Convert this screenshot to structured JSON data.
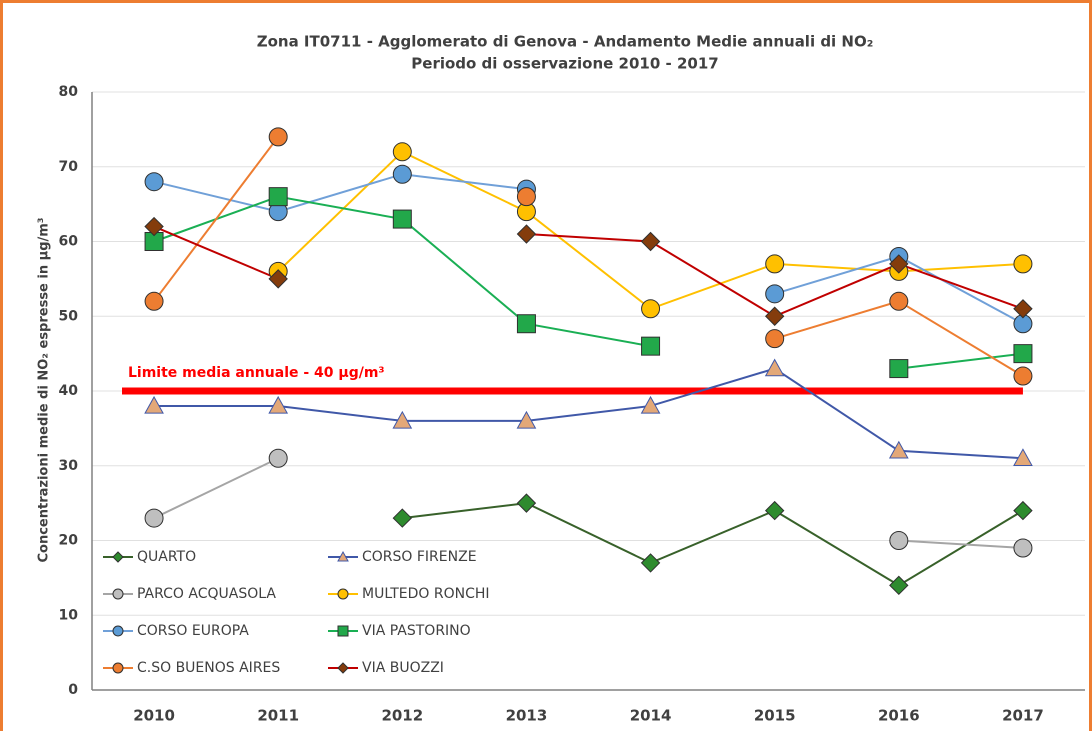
{
  "chart_data": {
    "type": "line",
    "title": "Zona IT0711 - Agglomerato di Genova - Andamento  Medie annuali di NO₂",
    "subtitle": "Periodo di osservazione 2010 - 2017",
    "y_label": "Concentrazioni medie di NO₂ espresse in µg/m³",
    "categories": [
      "2010",
      "2011",
      "2012",
      "2013",
      "2014",
      "2015",
      "2016",
      "2017"
    ],
    "ylim": [
      0,
      80
    ],
    "yticks": [
      0,
      10,
      20,
      30,
      40,
      50,
      60,
      70,
      80
    ],
    "grid": true,
    "legend": "lower left",
    "limit": {
      "value": 40,
      "label": "Limite media annuale - 40 µg/m³",
      "color": "#ff0000"
    },
    "series": [
      {
        "name": "QUARTO",
        "color": "#38612a",
        "marker": "diamond",
        "marker_color": "#2e8b2e",
        "values": [
          null,
          null,
          23,
          25,
          17,
          24,
          14,
          24
        ]
      },
      {
        "name": "CORSO FIRENZE",
        "color": "#4058a8",
        "marker": "triangle",
        "marker_color": "#e3a878",
        "values": [
          38,
          38,
          36,
          36,
          38,
          43,
          32,
          31
        ]
      },
      {
        "name": "PARCO ACQUASOLA",
        "color": "#a5a5a5",
        "marker": "circle",
        "marker_color": "#bfbfbf",
        "values": [
          23,
          31,
          null,
          null,
          null,
          null,
          20,
          19
        ]
      },
      {
        "name": "MULTEDO RONCHI",
        "color": "#ffc000",
        "marker": "circle",
        "marker_color": "#ffc000",
        "values": [
          null,
          56,
          72,
          64,
          51,
          57,
          56,
          57
        ]
      },
      {
        "name": "CORSO EUROPA",
        "color": "#70a0d8",
        "marker": "circle",
        "marker_color": "#5b9bd5",
        "values": [
          68,
          64,
          69,
          67,
          null,
          53,
          58,
          49
        ]
      },
      {
        "name": "VIA PASTORINO",
        "color": "#1aaf54",
        "marker": "square",
        "marker_color": "#22a84a",
        "values": [
          60,
          66,
          63,
          49,
          46,
          null,
          43,
          45
        ]
      },
      {
        "name": "C.SO BUENOS AIRES",
        "color": "#ed7d31",
        "marker": "circle",
        "marker_color": "#ed7d31",
        "values": [
          52,
          74,
          null,
          66,
          null,
          47,
          52,
          42
        ]
      },
      {
        "name": "VIA BUOZZI",
        "color": "#c00000",
        "marker": "diamond",
        "marker_color": "#843c0c",
        "values": [
          62,
          55,
          null,
          61,
          60,
          50,
          57,
          51
        ]
      }
    ]
  }
}
